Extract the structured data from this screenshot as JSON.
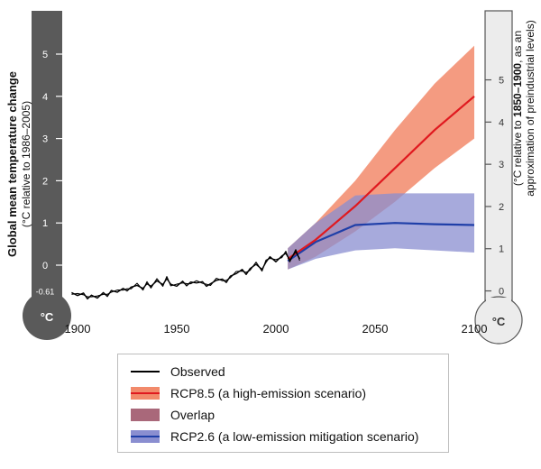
{
  "chart_data": {
    "type": "line",
    "left_axis": {
      "title": "Global mean temperature change",
      "subtitle": "(°C relative to 1986–2005)",
      "ticks": [
        0,
        1,
        2,
        3,
        4,
        5
      ],
      "extra_tick": "-0.61",
      "unit": "°C",
      "ylim": [
        -0.61,
        5.4
      ]
    },
    "right_axis": {
      "title_line1_prefix": "(°C relative to ",
      "title_line1_bold": "1850–1900",
      "title_line1_suffix": ", as an",
      "title_line2": "approximation of preindustrial levels)",
      "ticks": [
        0,
        1,
        2,
        3,
        4,
        5
      ],
      "offset": 0.61,
      "unit": "°C"
    },
    "x_axis": {
      "ticks": [
        1900,
        1950,
        2000,
        2050,
        2100
      ],
      "xlim": [
        1897,
        2100
      ]
    },
    "series": [
      {
        "name": "Observed",
        "color": "#000000",
        "x": [
          1897,
          1900,
          1903,
          1905,
          1907,
          1910,
          1913,
          1915,
          1917,
          1920,
          1923,
          1925,
          1927,
          1930,
          1933,
          1935,
          1937,
          1940,
          1943,
          1945,
          1947,
          1950,
          1953,
          1955,
          1957,
          1960,
          1963,
          1965,
          1967,
          1970,
          1973,
          1975,
          1977,
          1980,
          1983,
          1985,
          1987,
          1990,
          1993,
          1995,
          1997,
          2000,
          2003,
          2005,
          2007,
          2010,
          2012
        ],
        "y": [
          -0.65,
          -0.72,
          -0.66,
          -0.8,
          -0.71,
          -0.78,
          -0.65,
          -0.74,
          -0.6,
          -0.64,
          -0.55,
          -0.61,
          -0.52,
          -0.48,
          -0.55,
          -0.44,
          -0.5,
          -0.37,
          -0.46,
          -0.32,
          -0.45,
          -0.5,
          -0.38,
          -0.49,
          -0.4,
          -0.42,
          -0.39,
          -0.5,
          -0.44,
          -0.36,
          -0.33,
          -0.41,
          -0.26,
          -0.2,
          -0.1,
          -0.22,
          -0.08,
          0.02,
          -0.1,
          0.07,
          0.2,
          0.08,
          0.22,
          0.28,
          0.12,
          0.32,
          0.15
        ]
      },
      {
        "name": "RCP8.5 (a high-emission scenario)",
        "color": "#e0191f",
        "band_color": "#f28a6b",
        "x": [
          2006,
          2020,
          2040,
          2060,
          2080,
          2100
        ],
        "y": [
          0.15,
          0.6,
          1.4,
          2.3,
          3.2,
          4.0
        ],
        "lower": [
          -0.1,
          0.2,
          0.8,
          1.5,
          2.3,
          3.0
        ],
        "upper": [
          0.4,
          1.0,
          2.0,
          3.2,
          4.3,
          5.2
        ]
      },
      {
        "name": "RCP2.6 (a low-emission mitigation scenario)",
        "color": "#1f3fa8",
        "band_color": "#8a8ed0",
        "x": [
          2006,
          2020,
          2040,
          2060,
          2080,
          2100
        ],
        "y": [
          0.1,
          0.55,
          0.95,
          1.0,
          0.97,
          0.95
        ],
        "lower": [
          -0.1,
          0.15,
          0.35,
          0.4,
          0.35,
          0.3
        ],
        "upper": [
          0.4,
          1.0,
          1.65,
          1.7,
          1.7,
          1.7
        ]
      }
    ],
    "overlap": {
      "name": "Overlap",
      "color": "#a9687a"
    },
    "legend_position": "bottom-center"
  }
}
